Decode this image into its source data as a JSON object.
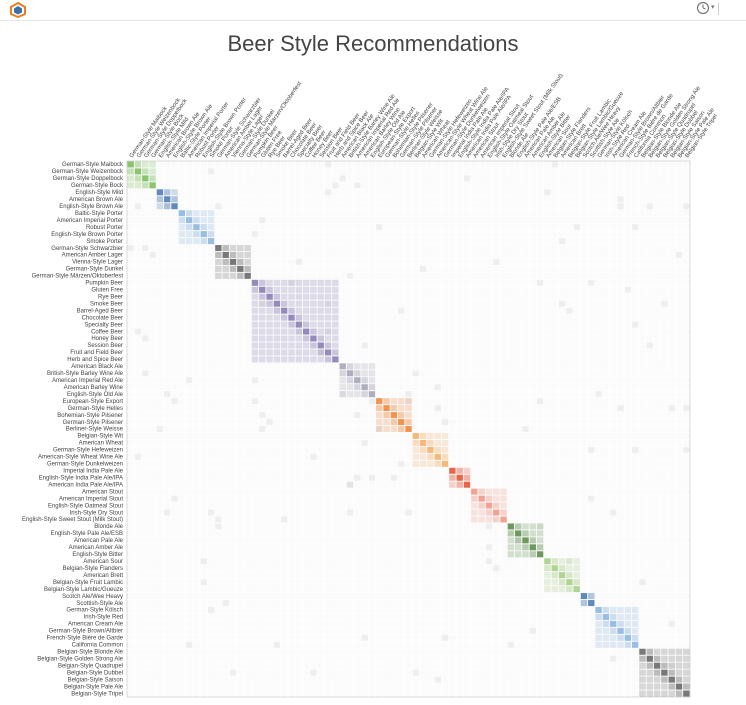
{
  "app": {
    "logo_icon": "app-logo-icon",
    "menu_icon": "clock-icon"
  },
  "chart_data": {
    "type": "heatmap",
    "title": "Beer Style Recommendations",
    "styles": [
      "German-Style Maibock",
      "German-Style Weizenbock",
      "German-Style Doppelbock",
      "German-Style Bock",
      "English-Style Mild",
      "American Brown Ale",
      "English-Style Brown Ale",
      "Baltic-Style Porter",
      "American Imperial Porter",
      "Robust Porter",
      "English-Style Brown Porter",
      "Smoke Porter",
      "German-Style Schwarzbier",
      "American Amber Lager",
      "Vienna-Style Lager",
      "German-Style Dunkel",
      "German-Style Märzen/Oktoberfest",
      "Pumpkin Beer",
      "Gluten Free",
      "Rye Beer",
      "Smoke Beer",
      "Barrel-Aged Beer",
      "Chocolate Beer",
      "Specialty Beer",
      "Coffee Beer",
      "Honey Beer",
      "Session Beer",
      "Fruit and Field Beer",
      "Herb and Spice Beer",
      "American Black Ale",
      "British-Style Barley Wine Ale",
      "American Imperial Red Ale",
      "American Barley Wine",
      "English-Style Old Ale",
      "European-Style Export",
      "German-Style Helles",
      "Bohemian-Style Pilsener",
      "German-Style Pilsener",
      "Berliner-Style Weisse",
      "Belgian-Style Wit",
      "American Wheat",
      "German-Style Hefeweizen",
      "American-Style Wheat Wine Ale",
      "German-Style Dunkelweizen",
      "Imperial India Pale Ale",
      "English-Style India Pale Ale/IPA",
      "American India Pale Ale/IPA",
      "American Stout",
      "American Imperial Stout",
      "English-Style Oatmeal Stout",
      "Irish-Style Dry Stout",
      "English-Style Sweet Stout (Milk Stout)",
      "Blonde Ale",
      "English-Style Pale Ale/ESB",
      "American Pale Ale",
      "American Amber Ale",
      "English-Style Bitter",
      "American Sour",
      "Belgian-Style Flanders",
      "American Brett",
      "Belgian-Style Fruit Lambic",
      "Belgian-Style Lambic/Gueuze",
      "Scotch Ale/Wee Heavy",
      "Scottish-Style Ale",
      "German-Style Kölsch",
      "Irish-Style Red",
      "American Cream Ale",
      "German-Style Brown/Altbier",
      "French-Style Bière de Garde",
      "California Common",
      "Belgian-Style Blonde Ale",
      "Belgian-Style Golden Strong Ale",
      "Belgian-Style Quadrupel",
      "Belgian-Style Dubbel",
      "Belgian-Style Saison",
      "Belgian-Style Pale Ale",
      "Belgian-Style Tripel"
    ],
    "groups": [
      {
        "start": 0,
        "end": 3,
        "color": "#7fbf5f"
      },
      {
        "start": 4,
        "end": 6,
        "color": "#4f7fb6"
      },
      {
        "start": 7,
        "end": 11,
        "color": "#8fb8e0"
      },
      {
        "start": 12,
        "end": 16,
        "color": "#6b6b6b"
      },
      {
        "start": 17,
        "end": 28,
        "color": "#8b7fb5"
      },
      {
        "start": 29,
        "end": 33,
        "color": "#a6a6b8"
      },
      {
        "start": 34,
        "end": 38,
        "color": "#f28a40"
      },
      {
        "start": 39,
        "end": 43,
        "color": "#f5b36e"
      },
      {
        "start": 44,
        "end": 46,
        "color": "#e8553a"
      },
      {
        "start": 47,
        "end": 51,
        "color": "#f09a8a"
      },
      {
        "start": 52,
        "end": 56,
        "color": "#5f8f4f"
      },
      {
        "start": 57,
        "end": 61,
        "color": "#a8d08a"
      },
      {
        "start": 62,
        "end": 63,
        "color": "#4f7fb6"
      },
      {
        "start": 64,
        "end": 69,
        "color": "#8fb8e0"
      },
      {
        "start": 70,
        "end": 76,
        "color": "#6b6b6b"
      }
    ],
    "xlabel": "",
    "ylabel": "",
    "grid": true
  }
}
